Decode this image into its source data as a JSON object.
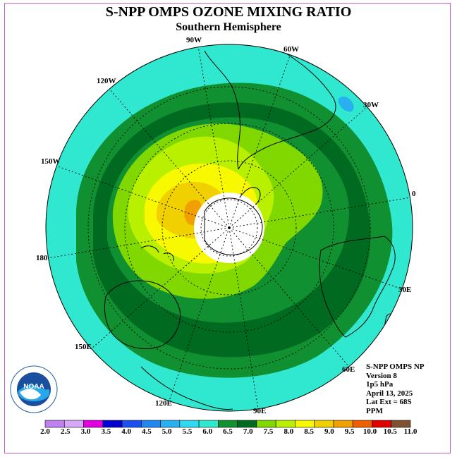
{
  "title": "S-NPP OMPS OZONE MIXING RATIO",
  "subtitle": "Southern Hemisphere",
  "longitude_labels": [
    "90W",
    "60W",
    "30W",
    "0",
    "30E",
    "60E",
    "90E",
    "120E",
    "150E",
    "180",
    "150W",
    "120W"
  ],
  "info": {
    "line1": "S-NPP OMPS NP",
    "line2": "Version 8",
    "line3": "1p5 hPa",
    "line4": "April 13, 2025",
    "line5": "Lat Ext = 68S",
    "line6": "PPM"
  },
  "logo": {
    "text": "NOAA",
    "ring_text": "NATIONAL OCEANIC AND ATMOSPHERIC ADMINISTRATION U.S. DEPARTMENT OF COMMERCE"
  },
  "colorbar": {
    "labels": [
      "2.0",
      "2.5",
      "3.0",
      "3.5",
      "4.0",
      "4.5",
      "5.0",
      "5.5",
      "6.0",
      "6.5",
      "7.0",
      "7.5",
      "8.0",
      "8.5",
      "9.0",
      "9.5",
      "10.0",
      "10.5",
      "11.0"
    ],
    "colors": [
      "#c080f0",
      "#d8a8f8",
      "#e000e0",
      "#0000d0",
      "#1e50f0",
      "#2088f0",
      "#28b0f0",
      "#30d8f0",
      "#30e8d0",
      "#109030",
      "#006a20",
      "#80d800",
      "#b8f000",
      "#f8f800",
      "#f0d000",
      "#f0a000",
      "#f06000",
      "#e00000",
      "#805030"
    ]
  },
  "contours": [
    {
      "level": "6.0",
      "color": "#109030"
    },
    {
      "level": "6.5",
      "color": "#006a20"
    },
    {
      "level": "7.0",
      "color": "#109030"
    },
    {
      "level": "7.5",
      "color": "#80d800"
    },
    {
      "level": "8.0",
      "color": "#b8f000"
    },
    {
      "level": "8.5",
      "color": "#f8f800"
    },
    {
      "level": "9.0",
      "color": "#f0d000"
    },
    {
      "level": "9.5",
      "color": "#f0a000"
    }
  ],
  "ocean_color": "#30e8d0",
  "polar_cap_color": "#ffffff"
}
